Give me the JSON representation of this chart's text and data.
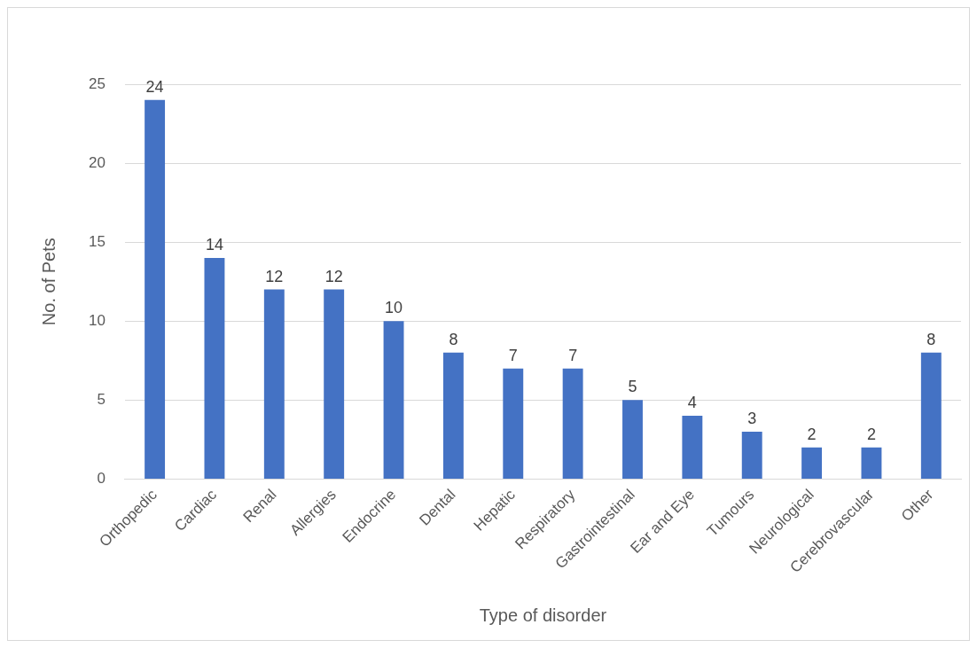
{
  "chart_data": {
    "type": "bar",
    "xlabel": "Type of disorder",
    "ylabel": "No. of Pets",
    "categories": [
      "Orthopedic",
      "Cardiac",
      "Renal",
      "Allergies",
      "Endocrine",
      "Dental",
      "Hepatic",
      "Respiratory",
      "Gastrointestinal",
      "Ear and Eye",
      "Tumours",
      "Neurological",
      "Cerebrovascular",
      "Other"
    ],
    "values": [
      24,
      14,
      12,
      12,
      10,
      8,
      7,
      7,
      5,
      4,
      3,
      2,
      2,
      8
    ],
    "color": "#4472c4",
    "ylim": [
      0,
      25
    ],
    "yticks": [
      0,
      5,
      10,
      15,
      20,
      25
    ],
    "grid": "y",
    "legend": false,
    "data_labels": true
  }
}
